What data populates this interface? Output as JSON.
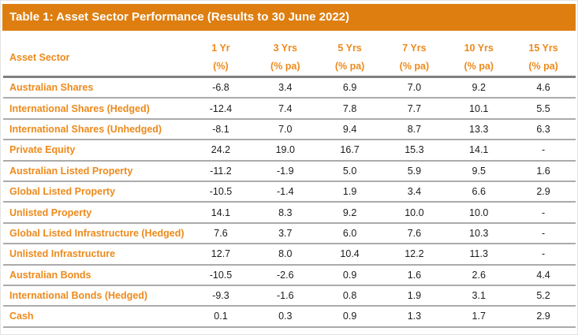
{
  "title_bar": {
    "title": "Table 1: Asset Sector Performance (Results to 30 June 2022)"
  },
  "table": {
    "first_column_header": "Asset Sector",
    "period_headers": [
      {
        "line1": "1 Yr",
        "line2": "(%)"
      },
      {
        "line1": "3 Yrs",
        "line2": "(% pa)"
      },
      {
        "line1": "5 Yrs",
        "line2": "(% pa)"
      },
      {
        "line1": "7 Yrs",
        "line2": "(% pa)"
      },
      {
        "line1": "10 Yrs",
        "line2": "(% pa)"
      },
      {
        "line1": "15 Yrs",
        "line2": "(% pa)"
      }
    ],
    "rows": [
      {
        "label": "Australian Shares",
        "values": [
          "-6.8",
          "3.4",
          "6.9",
          "7.0",
          "9.2",
          "4.6"
        ]
      },
      {
        "label": "International Shares (Hedged)",
        "values": [
          "-12.4",
          "7.4",
          "7.8",
          "7.7",
          "10.1",
          "5.5"
        ]
      },
      {
        "label": "International Shares (Unhedged)",
        "values": [
          "-8.1",
          "7.0",
          "9.4",
          "8.7",
          "13.3",
          "6.3"
        ]
      },
      {
        "label": "Private Equity",
        "values": [
          "24.2",
          "19.0",
          "16.7",
          "15.3",
          "14.1",
          "-"
        ]
      },
      {
        "label": "Australian Listed Property",
        "values": [
          "-11.2",
          "-1.9",
          "5.0",
          "5.9",
          "9.5",
          "1.6"
        ]
      },
      {
        "label": "Global Listed Property",
        "values": [
          "-10.5",
          "-1.4",
          "1.9",
          "3.4",
          "6.6",
          "2.9"
        ]
      },
      {
        "label": "Unlisted Property",
        "values": [
          "14.1",
          "8.3",
          "9.2",
          "10.0",
          "10.0",
          "-"
        ]
      },
      {
        "label": "Global Listed Infrastructure (Hedged)",
        "values": [
          "7.6",
          "3.7",
          "6.0",
          "7.6",
          "10.3",
          "-"
        ]
      },
      {
        "label": "Unlisted Infrastructure",
        "values": [
          "12.7",
          "8.0",
          "10.4",
          "12.2",
          "11.3",
          "-"
        ]
      },
      {
        "label": "Australian Bonds",
        "values": [
          "-10.5",
          "-2.6",
          "0.9",
          "1.6",
          "2.6",
          "4.4"
        ]
      },
      {
        "label": "International Bonds (Hedged)",
        "values": [
          "-9.3",
          "-1.6",
          "0.8",
          "1.9",
          "3.1",
          "5.2"
        ]
      },
      {
        "label": "Cash",
        "values": [
          "0.1",
          "0.3",
          "0.9",
          "1.3",
          "1.7",
          "2.9"
        ]
      }
    ]
  },
  "chart_data": {
    "type": "table",
    "title": "Table 1: Asset Sector Performance (Results to 30 June 2022)",
    "columns": [
      "Asset Sector",
      "1 Yr (%)",
      "3 Yrs (% pa)",
      "5 Yrs (% pa)",
      "7 Yrs (% pa)",
      "10 Yrs (% pa)",
      "15 Yrs (% pa)"
    ],
    "rows": [
      [
        "Australian Shares",
        -6.8,
        3.4,
        6.9,
        7.0,
        9.2,
        4.6
      ],
      [
        "International Shares (Hedged)",
        -12.4,
        7.4,
        7.8,
        7.7,
        10.1,
        5.5
      ],
      [
        "International Shares (Unhedged)",
        -8.1,
        7.0,
        9.4,
        8.7,
        13.3,
        6.3
      ],
      [
        "Private Equity",
        24.2,
        19.0,
        16.7,
        15.3,
        14.1,
        null
      ],
      [
        "Australian Listed Property",
        -11.2,
        -1.9,
        5.0,
        5.9,
        9.5,
        1.6
      ],
      [
        "Global Listed Property",
        -10.5,
        -1.4,
        1.9,
        3.4,
        6.6,
        2.9
      ],
      [
        "Unlisted Property",
        14.1,
        8.3,
        9.2,
        10.0,
        10.0,
        null
      ],
      [
        "Global Listed Infrastructure (Hedged)",
        7.6,
        3.7,
        6.0,
        7.6,
        10.3,
        null
      ],
      [
        "Unlisted Infrastructure",
        12.7,
        8.0,
        10.4,
        12.2,
        11.3,
        null
      ],
      [
        "Australian Bonds",
        -10.5,
        -2.6,
        0.9,
        1.6,
        2.6,
        4.4
      ],
      [
        "International Bonds (Hedged)",
        -9.3,
        -1.6,
        0.8,
        1.9,
        3.1,
        5.2
      ],
      [
        "Cash",
        0.1,
        0.3,
        0.9,
        1.3,
        1.7,
        2.9
      ]
    ]
  },
  "colors": {
    "title_bar_bg": "#DE7E10",
    "accent_text": "#ED8A1C",
    "value_text": "#1C1C1C",
    "header_rule": "#808080",
    "row_divider": "#ABABAB"
  }
}
